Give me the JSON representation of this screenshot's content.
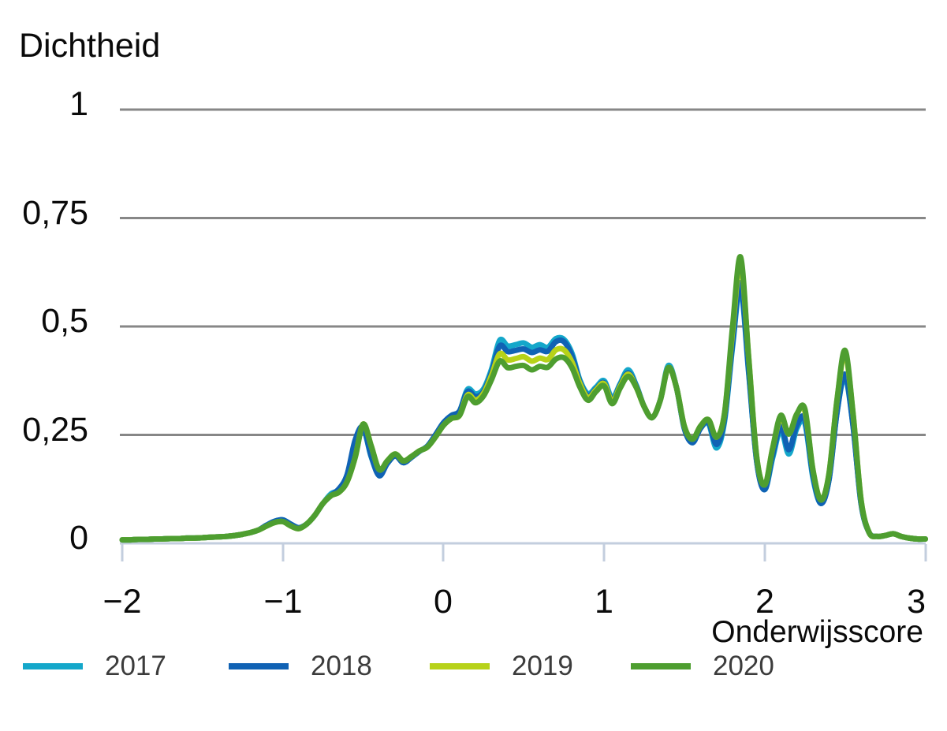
{
  "chart_data": {
    "type": "line",
    "title": "Dichtheid",
    "xlabel": "Onderwijsscore",
    "ylabel": "Dichtheid",
    "xlim": [
      -2,
      3
    ],
    "ylim": [
      0,
      1
    ],
    "grid": "horizontal-gray",
    "legend_position": "bottom",
    "axis_color": "#c3cede",
    "gridline_color": "#878787",
    "y_ticks": {
      "values": [
        1,
        0.75,
        0.5,
        0.25,
        0
      ],
      "labels": [
        "1",
        "0,75",
        "0,5",
        "0,25",
        "0"
      ]
    },
    "x_ticks": {
      "values": [
        -2,
        -1,
        0,
        1,
        2,
        3
      ],
      "labels": [
        "−2",
        "−1",
        "0",
        "1",
        "2",
        "3"
      ]
    },
    "x": [
      -2,
      -1.95,
      -1.9,
      -1.85,
      -1.8,
      -1.75,
      -1.7,
      -1.65,
      -1.6,
      -1.55,
      -1.5,
      -1.45,
      -1.4,
      -1.35,
      -1.3,
      -1.25,
      -1.2,
      -1.15,
      -1.1,
      -1.05,
      -1,
      -0.95,
      -0.9,
      -0.85,
      -0.8,
      -0.75,
      -0.7,
      -0.65,
      -0.6,
      -0.55,
      -0.5,
      -0.45,
      -0.4,
      -0.35,
      -0.3,
      -0.25,
      -0.2,
      -0.15,
      -0.1,
      -0.05,
      0,
      0.05,
      0.1,
      0.15,
      0.2,
      0.25,
      0.3,
      0.35,
      0.4,
      0.45,
      0.5,
      0.55,
      0.6,
      0.65,
      0.7,
      0.75,
      0.8,
      0.85,
      0.9,
      0.95,
      1,
      1.05,
      1.1,
      1.15,
      1.2,
      1.25,
      1.3,
      1.35,
      1.4,
      1.45,
      1.5,
      1.55,
      1.6,
      1.65,
      1.7,
      1.75,
      1.8,
      1.85,
      1.9,
      1.95,
      2,
      2.05,
      2.1,
      2.15,
      2.2,
      2.25,
      2.3,
      2.35,
      2.4,
      2.45,
      2.5,
      2.55,
      2.6,
      2.65,
      2.7,
      2.75,
      2.8,
      2.85,
      2.9,
      2.95,
      3
    ],
    "series": [
      {
        "name": "2017",
        "color": "#14a7ca",
        "values": [
          0.008,
          0.008,
          0.009,
          0.009,
          0.01,
          0.01,
          0.011,
          0.011,
          0.012,
          0.012,
          0.013,
          0.014,
          0.015,
          0.016,
          0.018,
          0.021,
          0.025,
          0.031,
          0.042,
          0.051,
          0.054,
          0.044,
          0.036,
          0.045,
          0.065,
          0.092,
          0.114,
          0.124,
          0.158,
          0.232,
          0.265,
          0.2,
          0.158,
          0.184,
          0.202,
          0.186,
          0.198,
          0.212,
          0.224,
          0.25,
          0.278,
          0.295,
          0.305,
          0.355,
          0.344,
          0.356,
          0.402,
          0.468,
          0.455,
          0.458,
          0.462,
          0.452,
          0.458,
          0.452,
          0.472,
          0.47,
          0.438,
          0.376,
          0.345,
          0.36,
          0.375,
          0.335,
          0.368,
          0.4,
          0.365,
          0.315,
          0.29,
          0.33,
          0.41,
          0.36,
          0.265,
          0.232,
          0.265,
          0.276,
          0.22,
          0.282,
          0.455,
          0.59,
          0.395,
          0.19,
          0.124,
          0.198,
          0.262,
          0.206,
          0.265,
          0.278,
          0.152,
          0.092,
          0.146,
          0.302,
          0.383,
          0.272,
          0.092,
          0.025,
          0.016,
          0.018,
          0.022,
          0.016,
          0.012,
          0.01,
          0.01
        ]
      },
      {
        "name": "2018",
        "color": "#1062b4",
        "values": [
          0.008,
          0.008,
          0.009,
          0.009,
          0.01,
          0.01,
          0.011,
          0.011,
          0.012,
          0.012,
          0.013,
          0.014,
          0.015,
          0.016,
          0.018,
          0.021,
          0.025,
          0.031,
          0.042,
          0.051,
          0.054,
          0.044,
          0.036,
          0.045,
          0.065,
          0.092,
          0.11,
          0.126,
          0.158,
          0.238,
          0.268,
          0.202,
          0.156,
          0.184,
          0.202,
          0.186,
          0.198,
          0.212,
          0.224,
          0.25,
          0.278,
          0.295,
          0.305,
          0.35,
          0.338,
          0.35,
          0.395,
          0.455,
          0.442,
          0.445,
          0.448,
          0.44,
          0.446,
          0.443,
          0.465,
          0.465,
          0.432,
          0.372,
          0.34,
          0.356,
          0.37,
          0.33,
          0.365,
          0.393,
          0.363,
          0.315,
          0.29,
          0.33,
          0.405,
          0.36,
          0.265,
          0.232,
          0.265,
          0.28,
          0.228,
          0.288,
          0.462,
          0.6,
          0.4,
          0.19,
          0.124,
          0.205,
          0.27,
          0.216,
          0.272,
          0.286,
          0.158,
          0.092,
          0.146,
          0.302,
          0.39,
          0.272,
          0.092,
          0.025,
          0.016,
          0.018,
          0.022,
          0.016,
          0.012,
          0.01,
          0.01
        ]
      },
      {
        "name": "2019",
        "color": "#b7d219",
        "values": [
          0.008,
          0.008,
          0.009,
          0.009,
          0.01,
          0.01,
          0.011,
          0.011,
          0.012,
          0.012,
          0.013,
          0.014,
          0.015,
          0.016,
          0.018,
          0.021,
          0.025,
          0.031,
          0.04,
          0.048,
          0.05,
          0.04,
          0.034,
          0.045,
          0.065,
          0.092,
          0.11,
          0.118,
          0.142,
          0.198,
          0.275,
          0.225,
          0.17,
          0.19,
          0.206,
          0.19,
          0.2,
          0.213,
          0.222,
          0.245,
          0.272,
          0.288,
          0.295,
          0.342,
          0.33,
          0.346,
          0.388,
          0.437,
          0.423,
          0.426,
          0.43,
          0.42,
          0.427,
          0.424,
          0.446,
          0.446,
          0.418,
          0.368,
          0.336,
          0.354,
          0.368,
          0.327,
          0.362,
          0.39,
          0.36,
          0.315,
          0.29,
          0.33,
          0.405,
          0.36,
          0.27,
          0.24,
          0.27,
          0.285,
          0.245,
          0.3,
          0.49,
          0.648,
          0.43,
          0.2,
          0.135,
          0.22,
          0.29,
          0.252,
          0.298,
          0.305,
          0.17,
          0.1,
          0.16,
          0.33,
          0.438,
          0.3,
          0.1,
          0.025,
          0.016,
          0.018,
          0.022,
          0.016,
          0.012,
          0.01,
          0.01
        ]
      },
      {
        "name": "2020",
        "color": "#4e9e30",
        "values": [
          0.008,
          0.008,
          0.009,
          0.009,
          0.01,
          0.01,
          0.011,
          0.011,
          0.012,
          0.012,
          0.013,
          0.014,
          0.015,
          0.016,
          0.018,
          0.021,
          0.025,
          0.031,
          0.04,
          0.048,
          0.05,
          0.04,
          0.034,
          0.045,
          0.065,
          0.092,
          0.11,
          0.118,
          0.142,
          0.198,
          0.275,
          0.225,
          0.17,
          0.19,
          0.206,
          0.19,
          0.2,
          0.213,
          0.222,
          0.245,
          0.272,
          0.288,
          0.295,
          0.338,
          0.324,
          0.34,
          0.378,
          0.42,
          0.405,
          0.408,
          0.41,
          0.4,
          0.408,
          0.406,
          0.425,
          0.428,
          0.405,
          0.36,
          0.33,
          0.35,
          0.363,
          0.322,
          0.358,
          0.385,
          0.36,
          0.315,
          0.29,
          0.33,
          0.405,
          0.36,
          0.27,
          0.24,
          0.27,
          0.285,
          0.245,
          0.3,
          0.5,
          0.66,
          0.43,
          0.2,
          0.135,
          0.22,
          0.295,
          0.252,
          0.298,
          0.31,
          0.17,
          0.1,
          0.16,
          0.33,
          0.445,
          0.3,
          0.1,
          0.025,
          0.016,
          0.018,
          0.022,
          0.016,
          0.012,
          0.01,
          0.01
        ]
      }
    ]
  }
}
